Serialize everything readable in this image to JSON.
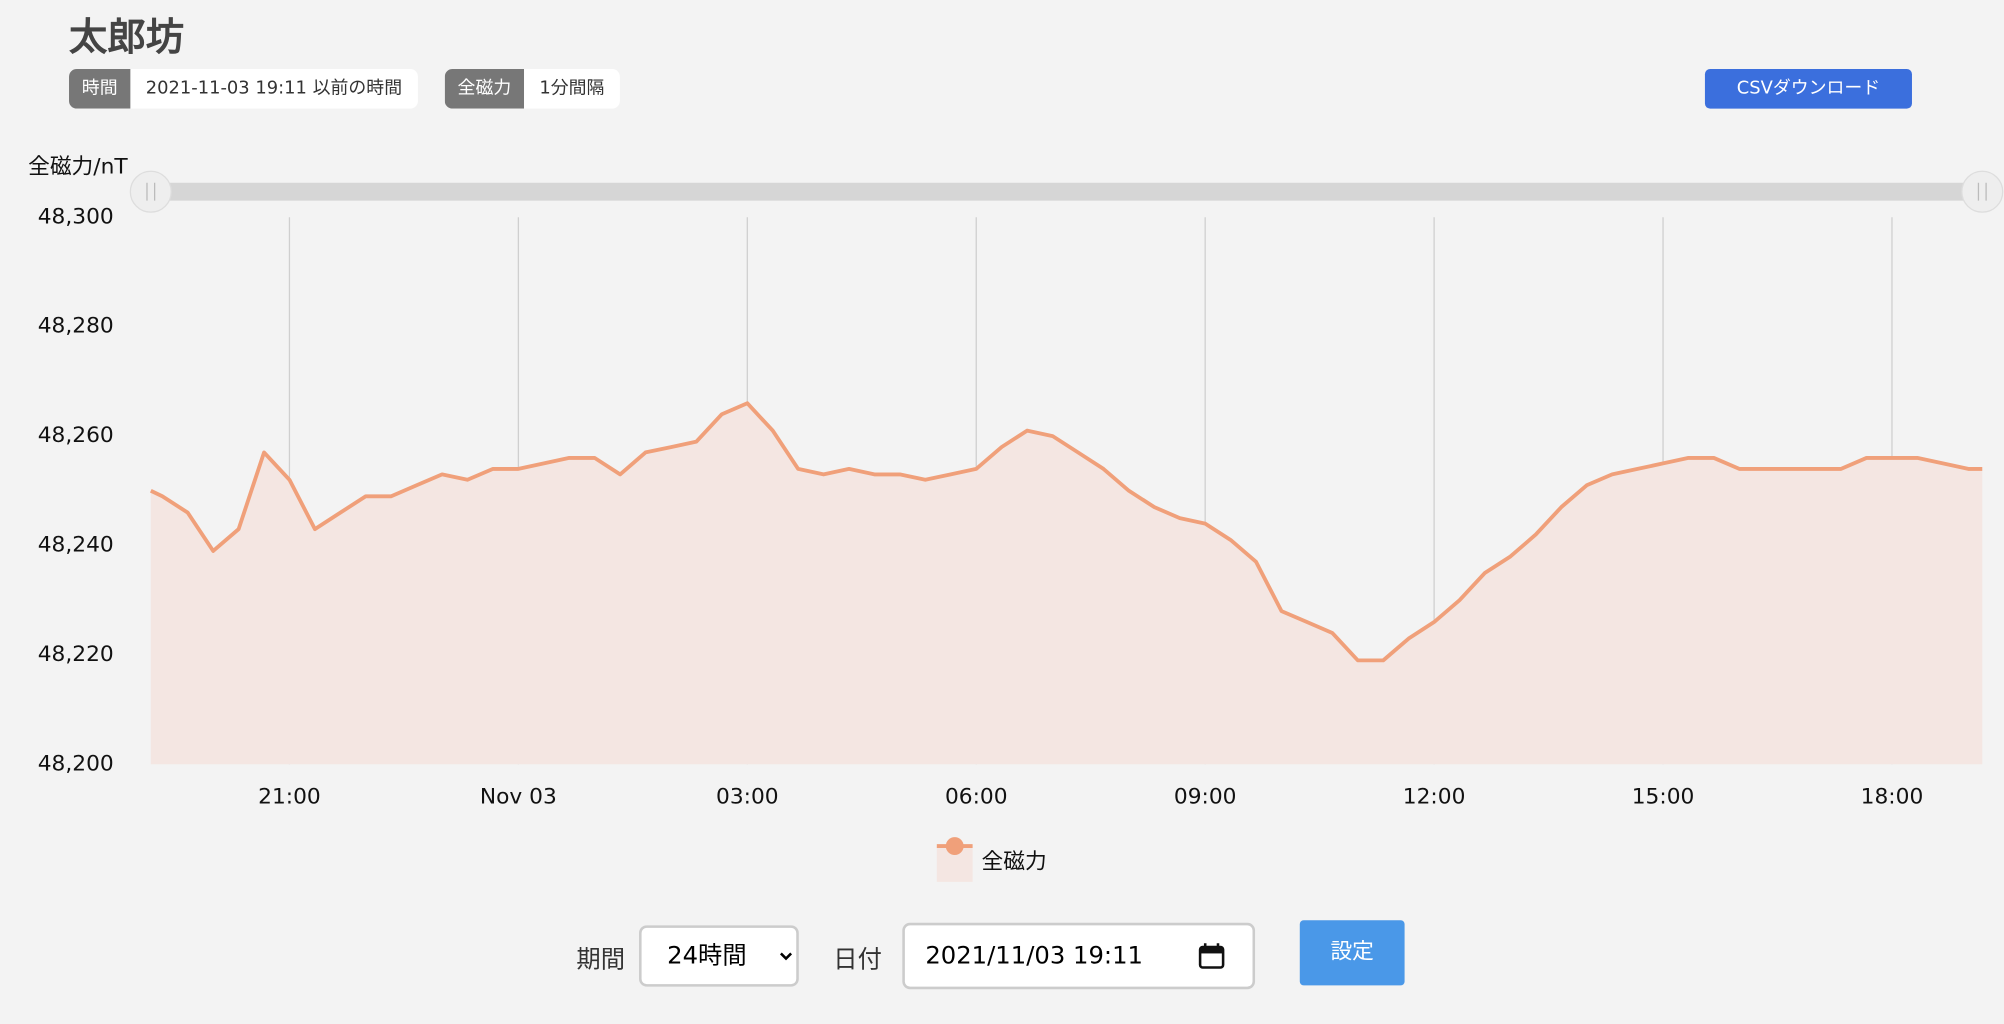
{
  "header": {
    "title": "太郎坊",
    "tags": [
      {
        "label": "時間",
        "value": "2021-11-03 19:11 以前の時間"
      },
      {
        "label": "全磁力",
        "value": "1分間隔"
      }
    ],
    "csv_button": "CSVダウンロード"
  },
  "chart_data": {
    "type": "line",
    "y_axis_title": "全磁力/nT",
    "area": true,
    "x_grid": true,
    "fill_color": "#f4e6e2",
    "xlim": [
      "2021-11-02 19:11",
      "2021-11-03 19:11"
    ],
    "xticks": [
      {
        "value": "2021-11-02 21:00",
        "label": "21:00"
      },
      {
        "value": "2021-11-03 00:00",
        "label": "Nov 03"
      },
      {
        "value": "2021-11-03 03:00",
        "label": "03:00"
      },
      {
        "value": "2021-11-03 06:00",
        "label": "06:00"
      },
      {
        "value": "2021-11-03 09:00",
        "label": "09:00"
      },
      {
        "value": "2021-11-03 12:00",
        "label": "12:00"
      },
      {
        "value": "2021-11-03 15:00",
        "label": "15:00"
      },
      {
        "value": "2021-11-03 18:00",
        "label": "18:00"
      }
    ],
    "ylim": [
      48200,
      48300
    ],
    "yticks": [
      {
        "value": 48200,
        "label": "48,200"
      },
      {
        "value": 48220,
        "label": "48,220"
      },
      {
        "value": 48240,
        "label": "48,240"
      },
      {
        "value": 48260,
        "label": "48,260"
      },
      {
        "value": 48280,
        "label": "48,280"
      },
      {
        "value": 48300,
        "label": "48,300"
      }
    ],
    "x": [
      "2021-11-02 19:11",
      "2021-11-02 19:20",
      "2021-11-02 19:40",
      "2021-11-02 20:00",
      "2021-11-02 20:20",
      "2021-11-02 20:40",
      "2021-11-02 21:00",
      "2021-11-02 21:20",
      "2021-11-02 21:40",
      "2021-11-02 22:00",
      "2021-11-02 22:20",
      "2021-11-02 22:40",
      "2021-11-02 23:00",
      "2021-11-02 23:20",
      "2021-11-02 23:40",
      "2021-11-03 00:00",
      "2021-11-03 00:20",
      "2021-11-03 00:40",
      "2021-11-03 01:00",
      "2021-11-03 01:20",
      "2021-11-03 01:40",
      "2021-11-03 02:00",
      "2021-11-03 02:20",
      "2021-11-03 02:40",
      "2021-11-03 03:00",
      "2021-11-03 03:20",
      "2021-11-03 03:40",
      "2021-11-03 04:00",
      "2021-11-03 04:20",
      "2021-11-03 04:40",
      "2021-11-03 05:00",
      "2021-11-03 05:20",
      "2021-11-03 05:40",
      "2021-11-03 06:00",
      "2021-11-03 06:20",
      "2021-11-03 06:40",
      "2021-11-03 07:00",
      "2021-11-03 07:20",
      "2021-11-03 07:40",
      "2021-11-03 08:00",
      "2021-11-03 08:20",
      "2021-11-03 08:40",
      "2021-11-03 09:00",
      "2021-11-03 09:20",
      "2021-11-03 09:40",
      "2021-11-03 10:00",
      "2021-11-03 10:20",
      "2021-11-03 10:40",
      "2021-11-03 11:00",
      "2021-11-03 11:20",
      "2021-11-03 11:40",
      "2021-11-03 12:00",
      "2021-11-03 12:20",
      "2021-11-03 12:40",
      "2021-11-03 13:00",
      "2021-11-03 13:20",
      "2021-11-03 13:40",
      "2021-11-03 14:00",
      "2021-11-03 14:20",
      "2021-11-03 14:40",
      "2021-11-03 15:00",
      "2021-11-03 15:20",
      "2021-11-03 15:40",
      "2021-11-03 16:00",
      "2021-11-03 16:20",
      "2021-11-03 16:40",
      "2021-11-03 17:00",
      "2021-11-03 17:20",
      "2021-11-03 17:40",
      "2021-11-03 18:00",
      "2021-11-03 18:20",
      "2021-11-03 18:40",
      "2021-11-03 19:00",
      "2021-11-03 19:11"
    ],
    "series": [
      {
        "name": "全磁力",
        "color": "#f0a07a",
        "values": [
          48250,
          48249,
          48246,
          48239,
          48243,
          48257,
          48252,
          48243,
          48246,
          48249,
          48249,
          48251,
          48253,
          48252,
          48254,
          48254,
          48255,
          48256,
          48256,
          48253,
          48257,
          48258,
          48259,
          48264,
          48266,
          48261,
          48254,
          48253,
          48254,
          48253,
          48253,
          48252,
          48253,
          48254,
          48258,
          48261,
          48260,
          48257,
          48254,
          48250,
          48247,
          48245,
          48244,
          48241,
          48237,
          48228,
          48226,
          48224,
          48219,
          48219,
          48223,
          48226,
          48230,
          48235,
          48238,
          48242,
          48247,
          48251,
          48253,
          48254,
          48255,
          48256,
          48256,
          48254,
          48254,
          48254,
          48254,
          48254,
          48256,
          48256,
          48256,
          48255,
          48254,
          48254
        ]
      }
    ]
  },
  "controls": {
    "period_label": "期間",
    "period_value": "24時間",
    "date_label": "日付",
    "date_value": "2021/11/03 19:11",
    "submit": "設定"
  }
}
